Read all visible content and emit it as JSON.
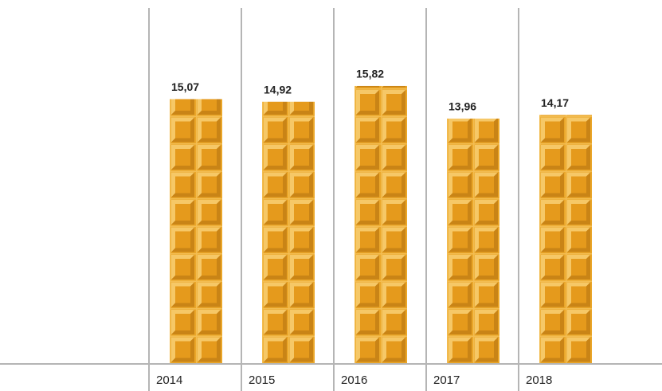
{
  "chart_data": {
    "type": "bar",
    "categories": [
      "2014",
      "2015",
      "2016",
      "2017",
      "2018"
    ],
    "values": [
      15.07,
      14.92,
      15.82,
      13.96,
      14.17
    ],
    "value_labels": [
      "15,07",
      "14,92",
      "15,82",
      "13,96",
      "14,17"
    ],
    "color": "#eaa629"
  }
}
